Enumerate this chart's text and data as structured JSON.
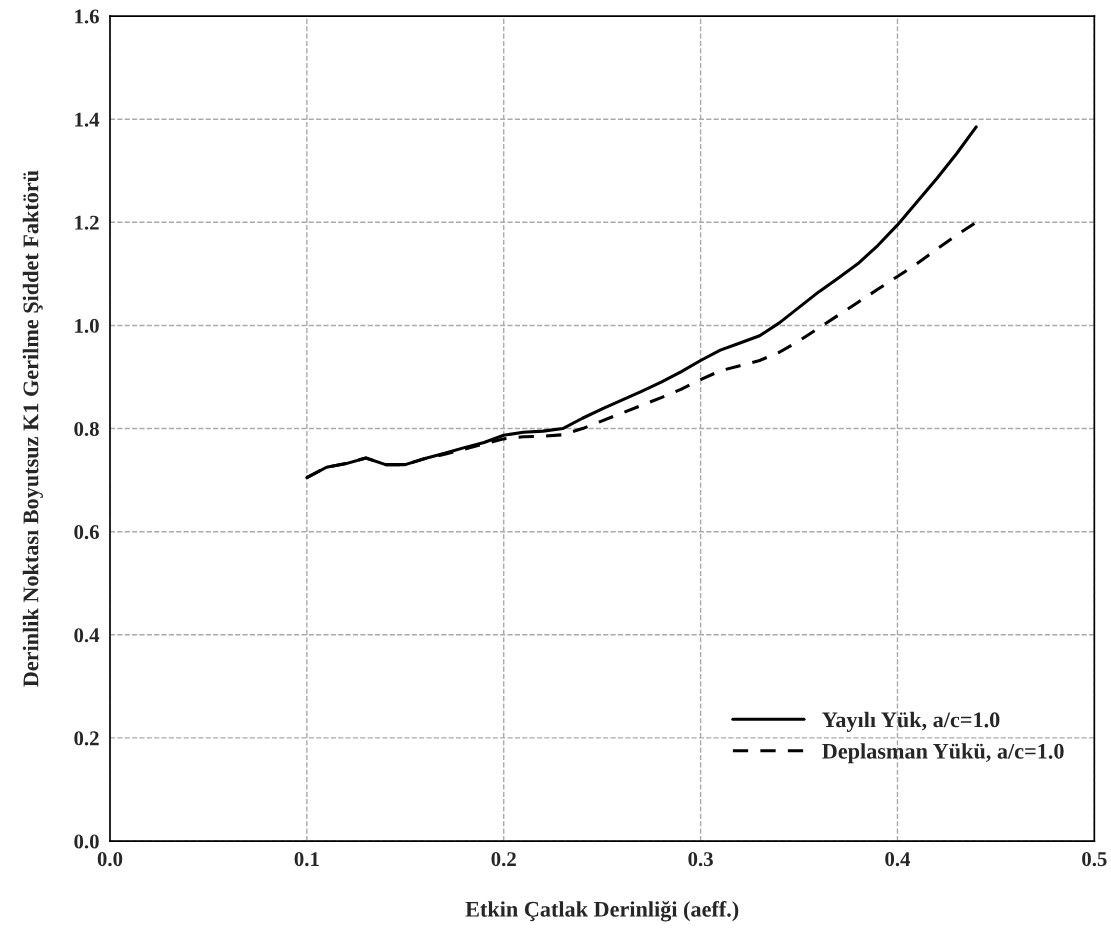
{
  "chart_data": {
    "type": "line",
    "xlabel": "Etkin Çatlak Derinliği (aeff.)",
    "ylabel": "Derinlik Noktası Boyutsuz K1 Gerilme Şiddet Faktörü",
    "x": [
      0.1,
      0.11,
      0.12,
      0.13,
      0.14,
      0.15,
      0.16,
      0.17,
      0.18,
      0.19,
      0.2,
      0.21,
      0.22,
      0.23,
      0.24,
      0.25,
      0.26,
      0.27,
      0.28,
      0.29,
      0.3,
      0.31,
      0.32,
      0.33,
      0.34,
      0.35,
      0.36,
      0.37,
      0.38,
      0.39,
      0.4,
      0.41,
      0.42,
      0.43,
      0.44
    ],
    "series": [
      {
        "name": "Yayılı Yük, a/c=1.0",
        "color": "#000000",
        "line_style": "solid",
        "values": [
          0.705,
          0.725,
          0.732,
          0.743,
          0.73,
          0.73,
          0.742,
          0.752,
          0.763,
          0.773,
          0.787,
          0.793,
          0.795,
          0.8,
          0.82,
          0.838,
          0.855,
          0.872,
          0.89,
          0.91,
          0.932,
          0.952,
          0.966,
          0.98,
          1.005,
          1.035,
          1.065,
          1.092,
          1.12,
          1.155,
          1.195,
          1.24,
          1.285,
          1.333,
          1.385
        ]
      },
      {
        "name": "Deplasman Yükü, a/c=1.0",
        "color": "#000000",
        "line_style": "dashed",
        "values": [
          0.705,
          0.725,
          0.732,
          0.743,
          0.73,
          0.73,
          0.742,
          0.75,
          0.76,
          0.77,
          0.78,
          0.784,
          0.785,
          0.788,
          0.8,
          0.815,
          0.83,
          0.845,
          0.86,
          0.876,
          0.895,
          0.912,
          0.922,
          0.932,
          0.948,
          0.97,
          0.995,
          1.02,
          1.045,
          1.07,
          1.095,
          1.12,
          1.148,
          1.175,
          1.2
        ]
      }
    ],
    "xlim": [
      0.0,
      0.5
    ],
    "ylim": [
      0.0,
      1.6
    ],
    "xticks": [
      {
        "value": 0.0,
        "label": "0.0"
      },
      0.1,
      0.2,
      0.3,
      0.4,
      0.5
    ],
    "yticks": [
      {
        "value": 0.0,
        "label": "0.0"
      },
      0.2,
      0.4,
      0.6,
      0.8,
      {
        "value": 1.0,
        "label": "1.0"
      },
      1.2,
      1.4,
      1.6
    ],
    "grid": true,
    "legend": "bottom right",
    "marker": "none"
  }
}
